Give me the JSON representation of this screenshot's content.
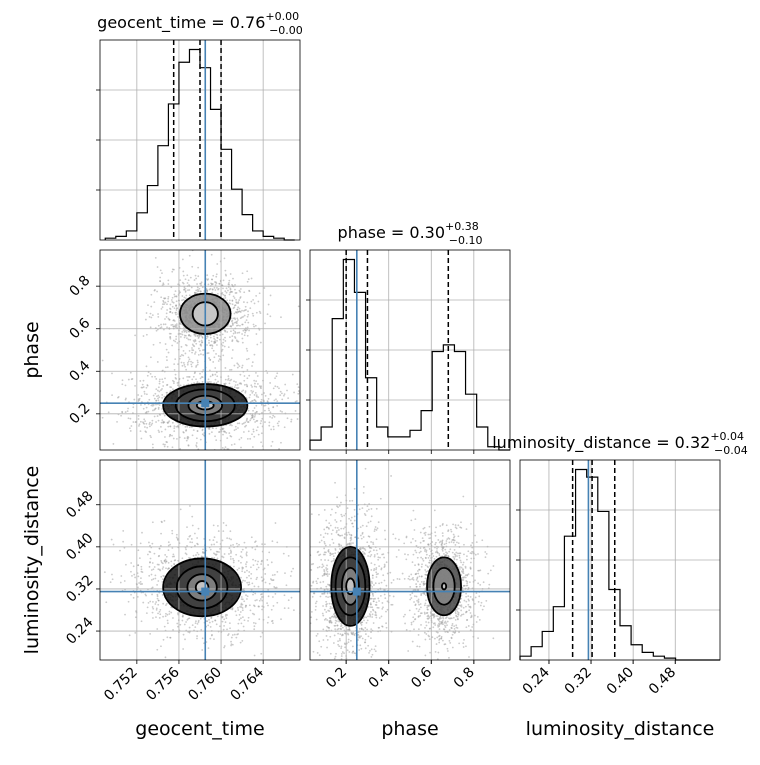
{
  "chart_data": {
    "type": "corner",
    "parameters": [
      {
        "name": "geocent_time",
        "range": [
          0.7485,
          0.7675
        ],
        "ticks": [
          0.752,
          0.756,
          0.76,
          0.764
        ],
        "tick_labels": [
          "0.752",
          "0.756",
          "0.760",
          "0.764"
        ],
        "truth": 0.7585,
        "quantiles": [
          0.7555,
          0.758,
          0.76
        ],
        "title_label": "geocent_time = 0.76",
        "title_sup": "+0.00",
        "title_sub": "−0.00"
      },
      {
        "name": "phase",
        "range": [
          0.03,
          0.97
        ],
        "ticks": [
          0.2,
          0.4,
          0.6,
          0.8
        ],
        "tick_labels": [
          "0.2",
          "0.4",
          "0.6",
          "0.8"
        ],
        "truth": 0.25,
        "quantiles": [
          0.2,
          0.3,
          0.68
        ],
        "title_label": "phase = 0.30",
        "title_sup": "+0.38",
        "title_sub": "−0.10"
      },
      {
        "name": "luminosity_distance",
        "range": [
          0.185,
          0.565
        ],
        "ticks": [
          0.24,
          0.32,
          0.4,
          0.48
        ],
        "tick_labels": [
          "0.24",
          "0.32",
          "0.40",
          "0.48"
        ],
        "truth": 0.315,
        "quantiles": [
          0.285,
          0.322,
          0.365
        ],
        "title_label": "luminosity_distance = 0.32",
        "title_sup": "+0.04",
        "title_sub": "−0.04"
      }
    ],
    "histograms": [
      {
        "parameter": "geocent_time",
        "bins": [
          0.749,
          0.75,
          0.751,
          0.752,
          0.753,
          0.754,
          0.755,
          0.756,
          0.757,
          0.758,
          0.759,
          0.76,
          0.761,
          0.762,
          0.763,
          0.764,
          0.765,
          0.766,
          0.767
        ],
        "counts": [
          1,
          2,
          5,
          15,
          30,
          52,
          75,
          98,
          105,
          95,
          72,
          50,
          28,
          14,
          5,
          2,
          1,
          0
        ]
      },
      {
        "parameter": "phase",
        "bins": [
          0.03,
          0.0822,
          0.1344,
          0.1867,
          0.2389,
          0.2911,
          0.3433,
          0.3956,
          0.4478,
          0.5,
          0.5522,
          0.6044,
          0.6567,
          0.7089,
          0.7611,
          0.8133,
          0.8656,
          0.9178,
          0.97
        ],
        "counts": [
          3,
          7,
          40,
          58,
          48,
          22,
          7,
          4,
          4,
          6,
          12,
          30,
          32,
          30,
          17,
          7,
          1,
          0
        ]
      },
      {
        "parameter": "luminosity_distance",
        "bins": [
          0.185,
          0.2061,
          0.2272,
          0.2483,
          0.2694,
          0.2906,
          0.3117,
          0.3328,
          0.3539,
          0.375,
          0.3961,
          0.4172,
          0.4383,
          0.4594,
          0.4806,
          0.5017,
          0.5228,
          0.5439,
          0.565
        ],
        "counts": [
          2,
          7,
          15,
          28,
          65,
          100,
          96,
          78,
          37,
          18,
          8,
          4,
          2,
          1,
          0,
          0,
          0,
          0
        ]
      }
    ],
    "contours_2d": [
      {
        "x": "geocent_time",
        "y": "phase",
        "modes": [
          {
            "center": [
              0.7585,
              0.67
            ],
            "levels_sigma": [
              [
                0.0012,
                0.055
              ],
              [
                0.0024,
                0.095
              ]
            ]
          },
          {
            "center": [
              0.7585,
              0.24
            ],
            "levels_sigma": [
              [
                0.0008,
                0.02
              ],
              [
                0.0016,
                0.045
              ],
              [
                0.0028,
                0.075
              ],
              [
                0.004,
                0.1
              ]
            ]
          }
        ]
      },
      {
        "x": "geocent_time",
        "y": "luminosity_distance",
        "modes": [
          {
            "center": [
              0.7582,
              0.323
            ],
            "levels_sigma": [
              [
                0.0006,
                0.012
              ],
              [
                0.0014,
                0.025
              ],
              [
                0.0024,
                0.04
              ],
              [
                0.0037,
                0.055
              ]
            ]
          }
        ]
      },
      {
        "x": "phase",
        "y": "luminosity_distance",
        "modes": [
          {
            "center": [
              0.22,
              0.325
            ],
            "levels_sigma": [
              [
                0.02,
                0.015
              ],
              [
                0.04,
                0.035
              ],
              [
                0.07,
                0.055
              ],
              [
                0.09,
                0.075
              ]
            ]
          },
          {
            "center": [
              0.66,
              0.325
            ],
            "levels_sigma": [
              [
                0.01,
                0.006
              ],
              [
                0.05,
                0.035
              ],
              [
                0.08,
                0.055
              ]
            ]
          }
        ]
      }
    ],
    "truth_color": "#4682b4",
    "scatter_color": "#a0a0a0",
    "contour_color": "#000000",
    "grid": true,
    "legend": "none"
  }
}
